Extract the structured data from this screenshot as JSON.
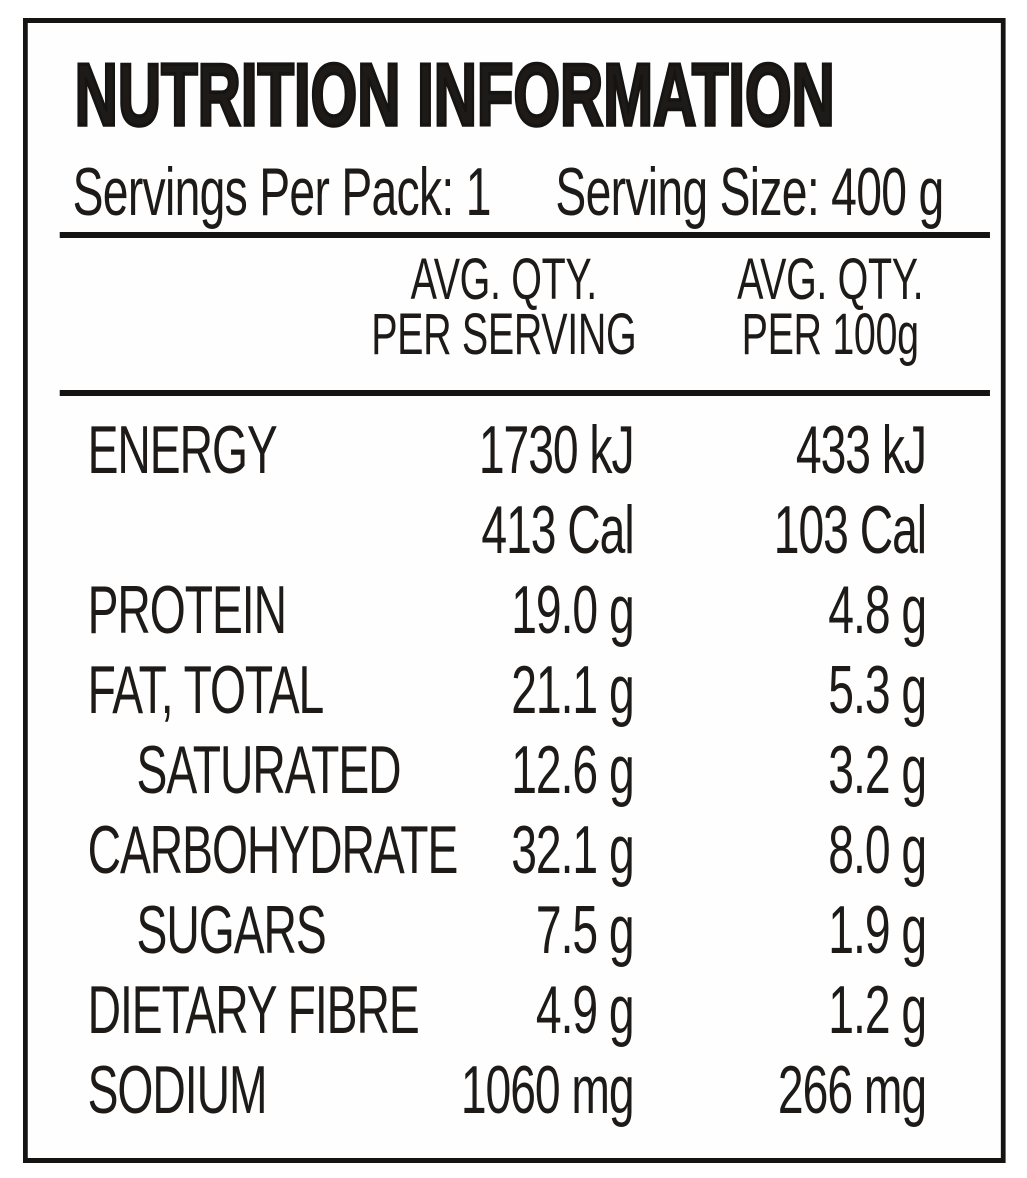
{
  "label": {
    "title": "NUTRITION INFORMATION",
    "servings_per_pack": "Servings Per Pack: 1",
    "serving_size": "Serving Size: 400 g"
  },
  "table": {
    "columns": [
      {
        "line1": "AVG. QTY.",
        "line2": "PER SERVING"
      },
      {
        "line1": "AVG. QTY.",
        "line2": "PER 100g"
      }
    ],
    "rows": [
      {
        "name": "ENERGY",
        "indent": false,
        "per_serving": "1730 kJ",
        "per_100g": "433 kJ"
      },
      {
        "name": "",
        "indent": false,
        "per_serving": "413 Cal",
        "per_100g": "103 Cal"
      },
      {
        "name": "PROTEIN",
        "indent": false,
        "per_serving": "19.0 g",
        "per_100g": "4.8 g"
      },
      {
        "name": "FAT, TOTAL",
        "indent": false,
        "per_serving": "21.1 g",
        "per_100g": "5.3 g"
      },
      {
        "name": "SATURATED",
        "indent": true,
        "per_serving": "12.6 g",
        "per_100g": "3.2 g"
      },
      {
        "name": "CARBOHYDRATE",
        "indent": false,
        "per_serving": "32.1 g",
        "per_100g": "8.0 g"
      },
      {
        "name": "SUGARS",
        "indent": true,
        "per_serving": "7.5 g",
        "per_100g": "1.9 g"
      },
      {
        "name": "DIETARY FIBRE",
        "indent": false,
        "per_serving": "4.9 g",
        "per_100g": "1.2 g"
      },
      {
        "name": "SODIUM",
        "indent": false,
        "per_serving": "1060 mg",
        "per_100g": "266 mg"
      }
    ]
  },
  "colors": {
    "text": "#1d1a17",
    "border": "#161412",
    "background": "#fefefe"
  }
}
